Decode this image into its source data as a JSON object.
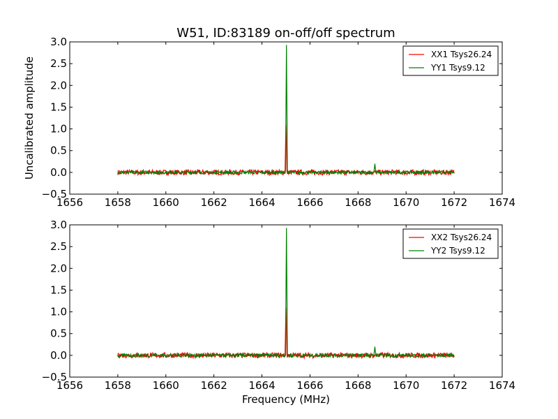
{
  "chart_data": {
    "type": "line",
    "title": "W51, ID:83189 on-off/off spectrum",
    "xlabel": "Frequency (MHz)",
    "ylabel": "Uncalibrated amplitude",
    "xlim": [
      1656,
      1674
    ],
    "ylim": [
      -0.5,
      3.0
    ],
    "xticks": [
      "1656",
      "1658",
      "1660",
      "1662",
      "1664",
      "1666",
      "1668",
      "1670",
      "1672",
      "1674"
    ],
    "yticks": [
      "−0.5",
      "0.0",
      "0.5",
      "1.0",
      "1.5",
      "2.0",
      "2.5",
      "3.0"
    ],
    "yticks_top": [
      "0.0",
      "0.5",
      "1.0",
      "1.5",
      "2.0",
      "2.5",
      "3.0"
    ],
    "grid": false,
    "legend_position": "top-right",
    "colors": {
      "xx": "#ff0000",
      "yy": "#008000"
    },
    "panels": [
      {
        "series": [
          {
            "name": "XX1 Tsys26.24",
            "color": "#ff0000",
            "x_range": [
              1658.0,
              1672.0
            ],
            "baseline": 0.0,
            "noise_amplitude": 0.06,
            "peaks": [
              {
                "x": 1665.0,
                "y": 1.1
              }
            ]
          },
          {
            "name": "YY1 Tsys9.12",
            "color": "#008000",
            "x_range": [
              1658.0,
              1672.0
            ],
            "baseline": 0.0,
            "noise_amplitude": 0.035,
            "peaks": [
              {
                "x": 1665.02,
                "y": 2.93
              },
              {
                "x": 1668.7,
                "y": 0.2
              }
            ]
          }
        ]
      },
      {
        "series": [
          {
            "name": "XX2 Tsys26.24",
            "color": "#ff0000",
            "x_range": [
              1658.0,
              1672.0
            ],
            "baseline": 0.0,
            "noise_amplitude": 0.06,
            "peaks": [
              {
                "x": 1665.0,
                "y": 1.1
              }
            ]
          },
          {
            "name": "YY2 Tsys9.12",
            "color": "#008000",
            "x_range": [
              1658.0,
              1672.0
            ],
            "baseline": 0.0,
            "noise_amplitude": 0.035,
            "peaks": [
              {
                "x": 1665.02,
                "y": 2.93
              },
              {
                "x": 1668.7,
                "y": 0.2
              }
            ]
          }
        ]
      }
    ]
  }
}
